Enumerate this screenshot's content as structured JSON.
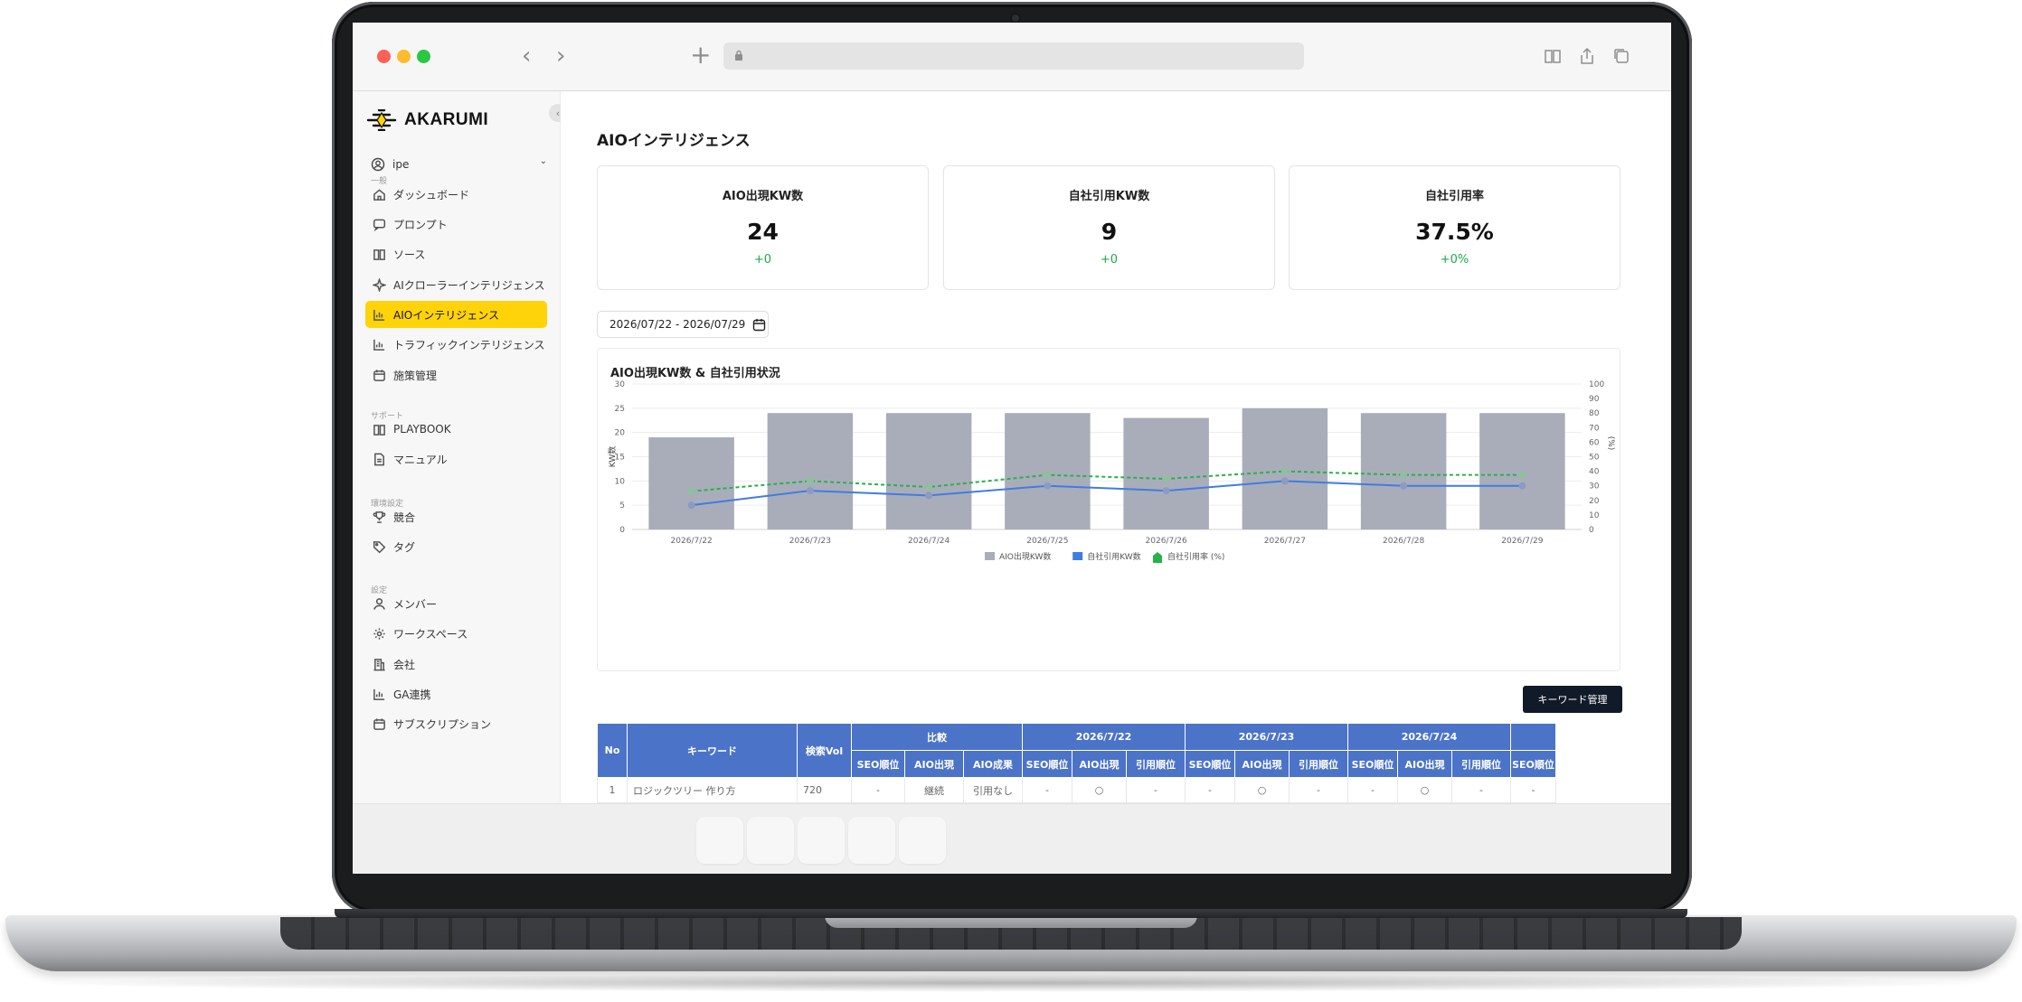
{
  "browser": {
    "url": ""
  },
  "brand": {
    "name": "AKARUMI"
  },
  "workspace": {
    "name": "ipe"
  },
  "sidebar": {
    "sections": [
      {
        "label": "一般",
        "items": [
          {
            "label": "ダッシュボード",
            "icon": "home-icon"
          },
          {
            "label": "プロンプト",
            "icon": "message-icon"
          },
          {
            "label": "ソース",
            "icon": "book-icon"
          },
          {
            "label": "AIクローラーインテリジェンス",
            "icon": "sparkle-icon"
          },
          {
            "label": "AIOインテリジェンス",
            "icon": "bar-chart-icon",
            "active": true
          },
          {
            "label": "トラフィックインテリジェンス",
            "icon": "bar-chart-icon"
          },
          {
            "label": "施策管理",
            "icon": "calendar-icon"
          }
        ]
      },
      {
        "label": "サポート",
        "items": [
          {
            "label": "PLAYBOOK",
            "icon": "book-icon"
          },
          {
            "label": "マニュアル",
            "icon": "file-icon"
          }
        ]
      },
      {
        "label": "環境設定",
        "items": [
          {
            "label": "競合",
            "icon": "trophy-icon"
          },
          {
            "label": "タグ",
            "icon": "tag-icon"
          }
        ]
      },
      {
        "label": "設定",
        "items": [
          {
            "label": "メンバー",
            "icon": "user-icon"
          },
          {
            "label": "ワークスペース",
            "icon": "gear-icon"
          },
          {
            "label": "会社",
            "icon": "building-icon"
          },
          {
            "label": "GA連携",
            "icon": "bar-chart-icon"
          },
          {
            "label": "サブスクリプション",
            "icon": "calendar-icon"
          }
        ]
      }
    ]
  },
  "page": {
    "title": "AIOインテリジェンス",
    "kpis": [
      {
        "label": "AIO出現KW数",
        "value": "24",
        "delta": "+0"
      },
      {
        "label": "自社引用KW数",
        "value": "9",
        "delta": "+0"
      },
      {
        "label": "自社引用率",
        "value": "37.5%",
        "delta": "+0%"
      }
    ],
    "date_range": "2026/07/22 - 2026/07/29",
    "keyword_button": "キーワード管理"
  },
  "chart_data": {
    "type": "bar",
    "title": "AIO出現KW数 & 自社引用状況",
    "categories": [
      "2026/7/22",
      "2026/7/23",
      "2026/7/24",
      "2026/7/25",
      "2026/7/26",
      "2026/7/27",
      "2026/7/28",
      "2026/7/29"
    ],
    "series": [
      {
        "name": "AIO出現KW数",
        "kind": "bar",
        "axis": "left",
        "color": "#a9adba",
        "values": [
          19,
          24,
          24,
          24,
          23,
          25,
          24,
          24
        ]
      },
      {
        "name": "自社引用KW数",
        "kind": "line",
        "axis": "left",
        "color": "#3f7de0",
        "values": [
          5,
          8,
          7,
          9,
          8,
          10,
          9,
          9
        ]
      },
      {
        "name": "自社引用率 (%)",
        "kind": "line-dashed",
        "axis": "right",
        "color": "#27b24a",
        "values": [
          26.3,
          33.3,
          29.2,
          37.5,
          34.8,
          40.0,
          37.5,
          37.5
        ]
      }
    ],
    "ylabel": "KW数",
    "y2label": "(%)",
    "ylim": [
      0,
      30
    ],
    "y2lim": [
      0,
      100
    ],
    "yticks": [
      0,
      5,
      10,
      15,
      20,
      25,
      30
    ],
    "y2ticks": [
      0,
      10,
      20,
      30,
      40,
      50,
      60,
      70,
      80,
      90,
      100
    ],
    "grid": true,
    "legend": "bottom"
  },
  "table": {
    "group_headers": [
      "比較",
      "2026/7/22",
      "2026/7/23",
      "2026/7/24"
    ],
    "fixed_headers": [
      "No",
      "キーワード",
      "検索Vol"
    ],
    "compare_subheaders": [
      "SEO順位",
      "AIO出現",
      "AIO成果"
    ],
    "date_subheaders": [
      "SEO順位",
      "AIO出現",
      "引用順位"
    ],
    "partial_header": "SEO順位",
    "rows": [
      {
        "no": "1",
        "keyword": "ロジックツリー 作り方",
        "vol": "720",
        "compare": [
          "-",
          "継続",
          "引用なし"
        ],
        "days": [
          [
            "-",
            "○",
            "-"
          ],
          [
            "-",
            "○",
            "-"
          ],
          [
            "-",
            "○",
            "-"
          ]
        ],
        "partial": "-"
      }
    ]
  }
}
